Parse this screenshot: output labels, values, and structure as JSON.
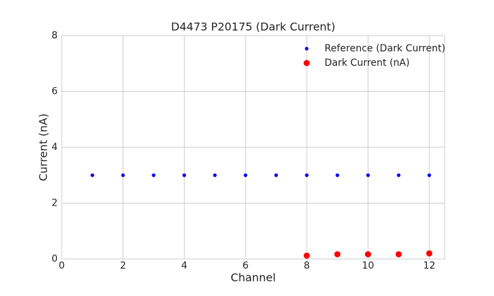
{
  "chart_data": {
    "type": "scatter",
    "title": "D4473 P20175 (Dark Current)",
    "x_label": "Channel",
    "y_label": "Current (nA)",
    "xlim": [
      0,
      12.5
    ],
    "xticks": [
      0,
      2,
      4,
      6,
      8,
      10,
      12
    ],
    "ylim": [
      0,
      8
    ],
    "yticks": [
      0,
      2,
      4,
      6,
      8
    ],
    "grid": true,
    "legend": "upper right",
    "series": [
      {
        "name": "Reference (Dark Current)",
        "color": "#0000ff",
        "x": [
          1,
          2,
          3,
          4,
          5,
          6,
          7,
          8,
          9,
          10,
          11,
          12
        ],
        "values": [
          3,
          3,
          3,
          3,
          3,
          3,
          3,
          3,
          3,
          3,
          3,
          3
        ]
      },
      {
        "name": "Dark Current (nA)",
        "color": "#ff0000",
        "x": [
          8,
          9,
          10,
          11,
          12
        ],
        "values": [
          0.12,
          0.17,
          0.17,
          0.17,
          0.2
        ]
      }
    ]
  }
}
